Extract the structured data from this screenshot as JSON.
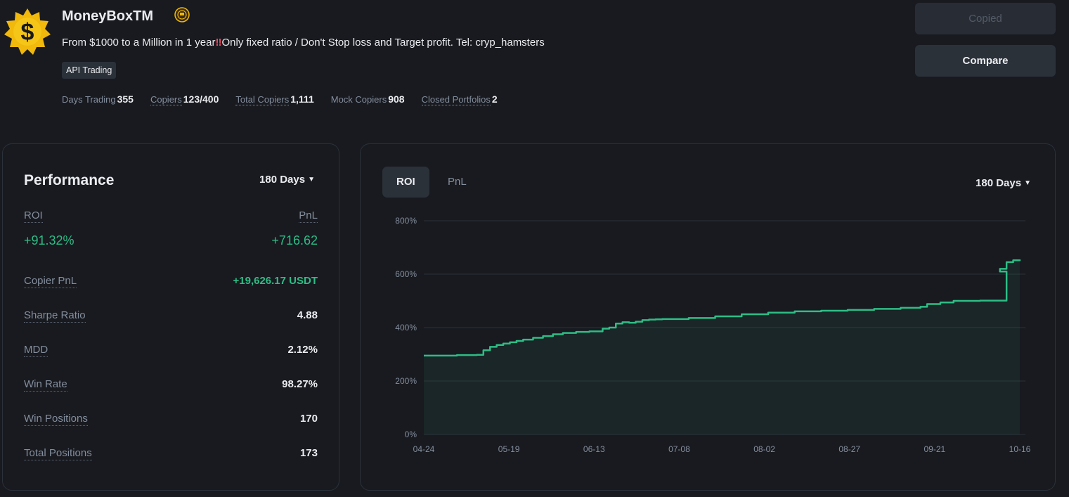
{
  "trader": {
    "name": "MoneyBoxTM",
    "description_before": "From $1000 to a Million in 1 year",
    "description_alert": "‼",
    "description_after": "Only fixed ratio / Don't Stop loss and Target profit. Tel: cryp_hamsters",
    "tag": "API Trading",
    "logo_symbol": "$"
  },
  "stats": [
    {
      "label": "Days Trading",
      "value": "355"
    },
    {
      "label": "Copiers",
      "value": "123/400"
    },
    {
      "label": "Total Copiers",
      "value": "1,111"
    },
    {
      "label": "Mock Copiers",
      "value": "908"
    },
    {
      "label": "Closed Portfolios",
      "value": "2"
    }
  ],
  "buttons": {
    "copied": "Copied",
    "compare": "Compare"
  },
  "performance": {
    "title": "Performance",
    "period": "180 Days",
    "roi_label": "ROI",
    "roi_value": "+91.32%",
    "pnl_label": "PnL",
    "pnl_value": "+716.62",
    "metrics": [
      {
        "label": "Copier PnL",
        "value": "+19,626.17 USDT",
        "positive": true
      },
      {
        "label": "Sharpe Ratio",
        "value": "4.88"
      },
      {
        "label": "MDD",
        "value": "2.12%"
      },
      {
        "label": "Win Rate",
        "value": "98.27%"
      },
      {
        "label": "Win Positions",
        "value": "170"
      },
      {
        "label": "Total Positions",
        "value": "173"
      }
    ]
  },
  "chart_panel": {
    "tabs": [
      "ROI",
      "PnL"
    ],
    "active_tab": "ROI",
    "period": "180 Days"
  },
  "colors": {
    "accent_green": "#2ebd85",
    "background": "#181a20",
    "panel": "#2b3139"
  },
  "chart_data": {
    "type": "line",
    "ylim": [
      0,
      800
    ],
    "y_ticks": [
      "0%",
      "200%",
      "400%",
      "600%",
      "800%"
    ],
    "y_tick_values": [
      0,
      200,
      400,
      600,
      800
    ],
    "x_ticks": [
      "04-24",
      "05-19",
      "06-13",
      "07-08",
      "08-02",
      "08-27",
      "09-21",
      "10-16"
    ],
    "x": [
      0,
      10,
      16,
      18,
      20,
      22,
      24,
      26,
      28,
      30,
      33,
      36,
      39,
      42,
      46,
      50,
      54,
      56,
      58,
      60,
      62,
      64,
      66,
      68,
      70,
      72,
      80,
      88,
      96,
      104,
      112,
      120,
      128,
      136,
      144,
      150,
      152,
      156,
      160,
      168,
      176,
      174,
      176,
      178,
      180
    ],
    "series": [
      {
        "values": [
          295,
          297,
          298,
          315,
          328,
          335,
          340,
          345,
          350,
          355,
          362,
          368,
          375,
          380,
          384,
          386,
          396,
          400,
          415,
          420,
          418,
          422,
          428,
          430,
          431,
          432,
          436,
          442,
          450,
          456,
          461,
          463,
          466,
          470,
          474,
          478,
          488,
          494,
          500,
          501,
          610,
          620,
          645,
          652,
          655
        ]
      }
    ]
  }
}
